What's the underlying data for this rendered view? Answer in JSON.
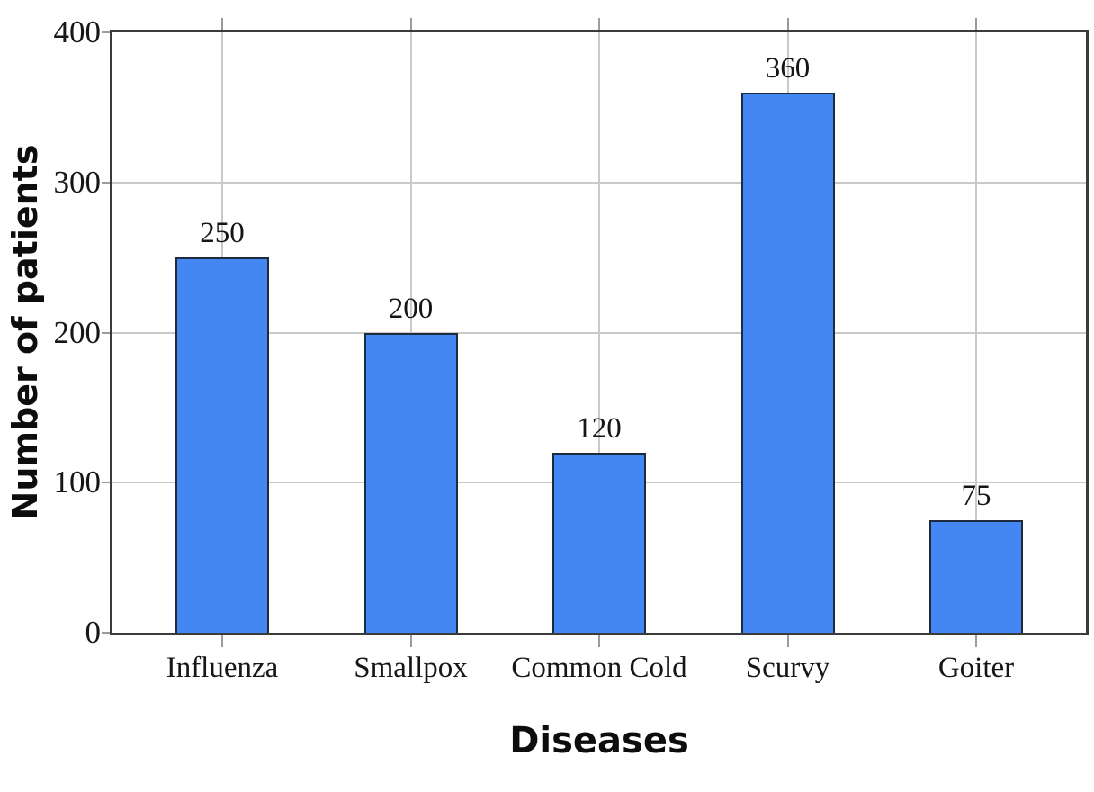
{
  "figure": {
    "background": "#ffffff"
  },
  "chart_data": {
    "type": "bar",
    "title": "",
    "categories": [
      "Influenza",
      "Smallpox",
      "Common Cold",
      "Scurvy",
      "Goiter"
    ],
    "values": [
      250,
      200,
      120,
      360,
      75
    ],
    "bar_value_labels": [
      "250",
      "200",
      "120",
      "360",
      "75"
    ],
    "xlabel": "Diseases",
    "ylabel": "Number of patients",
    "ylim": [
      0,
      400
    ],
    "yticks": [
      0,
      100,
      200,
      300,
      400
    ],
    "ytick_labels": [
      "0",
      "100",
      "200",
      "300",
      "400"
    ],
    "grid": true,
    "legend_position": "none",
    "colors": {
      "bar_fill": "#4487f2",
      "bar_border": "#1e2b3c",
      "plot_border": "#3b3b3b",
      "gridline": "#c9c9c9",
      "tick_mark": "#9b9b9b",
      "axis_label_text": "#0d0d0d",
      "tick_text": "#161616"
    }
  }
}
